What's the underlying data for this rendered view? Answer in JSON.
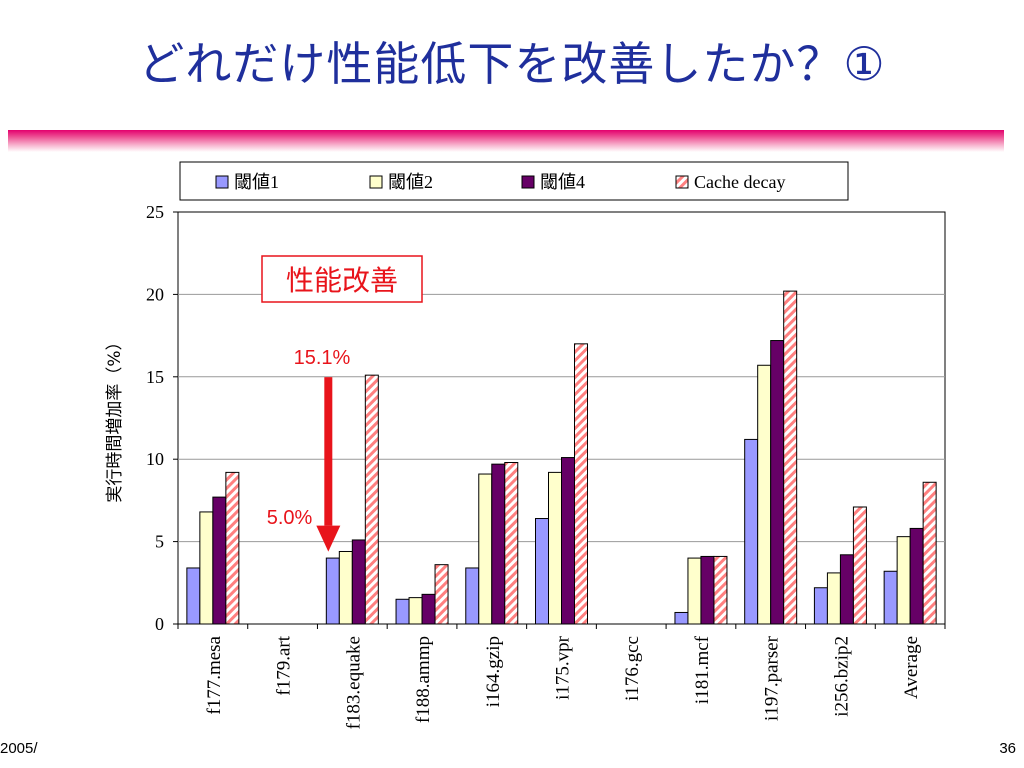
{
  "slide": {
    "title": "どれだけ性能低下を改善したか？①",
    "footer_left": "2005/",
    "page_number": "36"
  },
  "colors": {
    "title": "#1f2f9c",
    "rule": "#e3006d",
    "annotation": "#e8141b"
  },
  "chart_data": {
    "type": "bar",
    "title": "",
    "xlabel": "",
    "ylabel": "実行時間増加率（%）",
    "ylim": [
      0,
      25
    ],
    "yticks": [
      0,
      5,
      10,
      15,
      20,
      25
    ],
    "grid": true,
    "legend_position": "top",
    "categories": [
      "f177.mesa",
      "f179.art",
      "f183.equake",
      "f188.ammp",
      "i164.gzip",
      "i175.vpr",
      "i176.gcc",
      "i181.mcf",
      "i197.parser",
      "i256.bzip2",
      "Average"
    ],
    "series": [
      {
        "name": "閾値1",
        "color": "#9999ff",
        "values": [
          3.4,
          0,
          4.0,
          1.5,
          3.4,
          6.4,
          0,
          0.7,
          11.2,
          2.2,
          3.2
        ]
      },
      {
        "name": "閾値2",
        "color": "#ffffcc",
        "values": [
          6.8,
          0,
          4.4,
          1.6,
          9.1,
          9.2,
          0,
          4.0,
          15.7,
          3.1,
          5.3
        ]
      },
      {
        "name": "閾値4",
        "color": "#660066",
        "values": [
          7.7,
          0,
          5.1,
          1.8,
          9.7,
          10.1,
          0,
          4.1,
          17.2,
          4.2,
          5.8
        ]
      },
      {
        "name": "Cache decay",
        "color": "#ff8080",
        "pattern": "diagonal-stripes",
        "values": [
          9.2,
          0,
          15.1,
          3.6,
          9.8,
          17.0,
          0,
          4.1,
          20.2,
          7.1,
          8.6
        ]
      }
    ],
    "annotations": {
      "box_label": "性能改善",
      "top_label": "15.1%",
      "bottom_label": "5.0%",
      "arrow_category": "f183.equake",
      "arrow_from_value": 15.1,
      "arrow_to_value": 5.0
    }
  }
}
